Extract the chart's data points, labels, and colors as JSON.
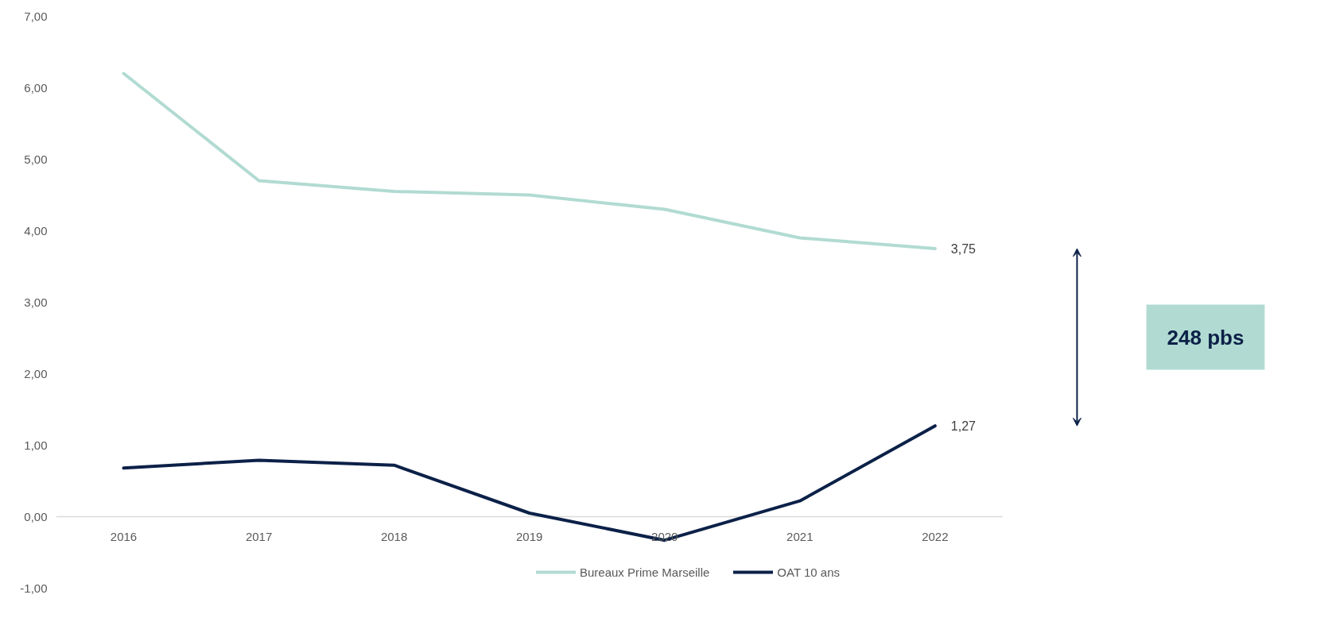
{
  "chart_data": {
    "type": "line",
    "categories": [
      "2016",
      "2017",
      "2018",
      "2019",
      "2020",
      "2021",
      "2022"
    ],
    "series": [
      {
        "name": "Bureaux Prime Marseille",
        "color": "#b1dbd2",
        "values": [
          6.2,
          4.7,
          4.55,
          4.5,
          4.3,
          3.9,
          3.75
        ],
        "value_labels": [
          null,
          null,
          null,
          null,
          null,
          null,
          "3,75"
        ]
      },
      {
        "name": "OAT 10 ans",
        "color": "#0c2148",
        "values": [
          0.68,
          0.79,
          0.72,
          0.05,
          -0.33,
          0.22,
          1.27
        ],
        "value_labels": [
          null,
          null,
          null,
          null,
          null,
          null,
          "1,27"
        ]
      }
    ],
    "ylim": [
      -1,
      7
    ],
    "yticks": [
      {
        "value": -1,
        "label": "-1,00"
      },
      {
        "value": 0,
        "label": "0,00"
      },
      {
        "value": 1,
        "label": "1,00"
      },
      {
        "value": 2,
        "label": "2,00"
      },
      {
        "value": 3,
        "label": "3,00"
      },
      {
        "value": 4,
        "label": "4,00"
      },
      {
        "value": 5,
        "label": "5,00"
      },
      {
        "value": 6,
        "label": "6,00"
      },
      {
        "value": 7,
        "label": "7,00"
      }
    ],
    "annotations": [
      "248 pbs"
    ],
    "grid": false,
    "legend": "bottom",
    "marker": "none",
    "line_style": "solid"
  }
}
